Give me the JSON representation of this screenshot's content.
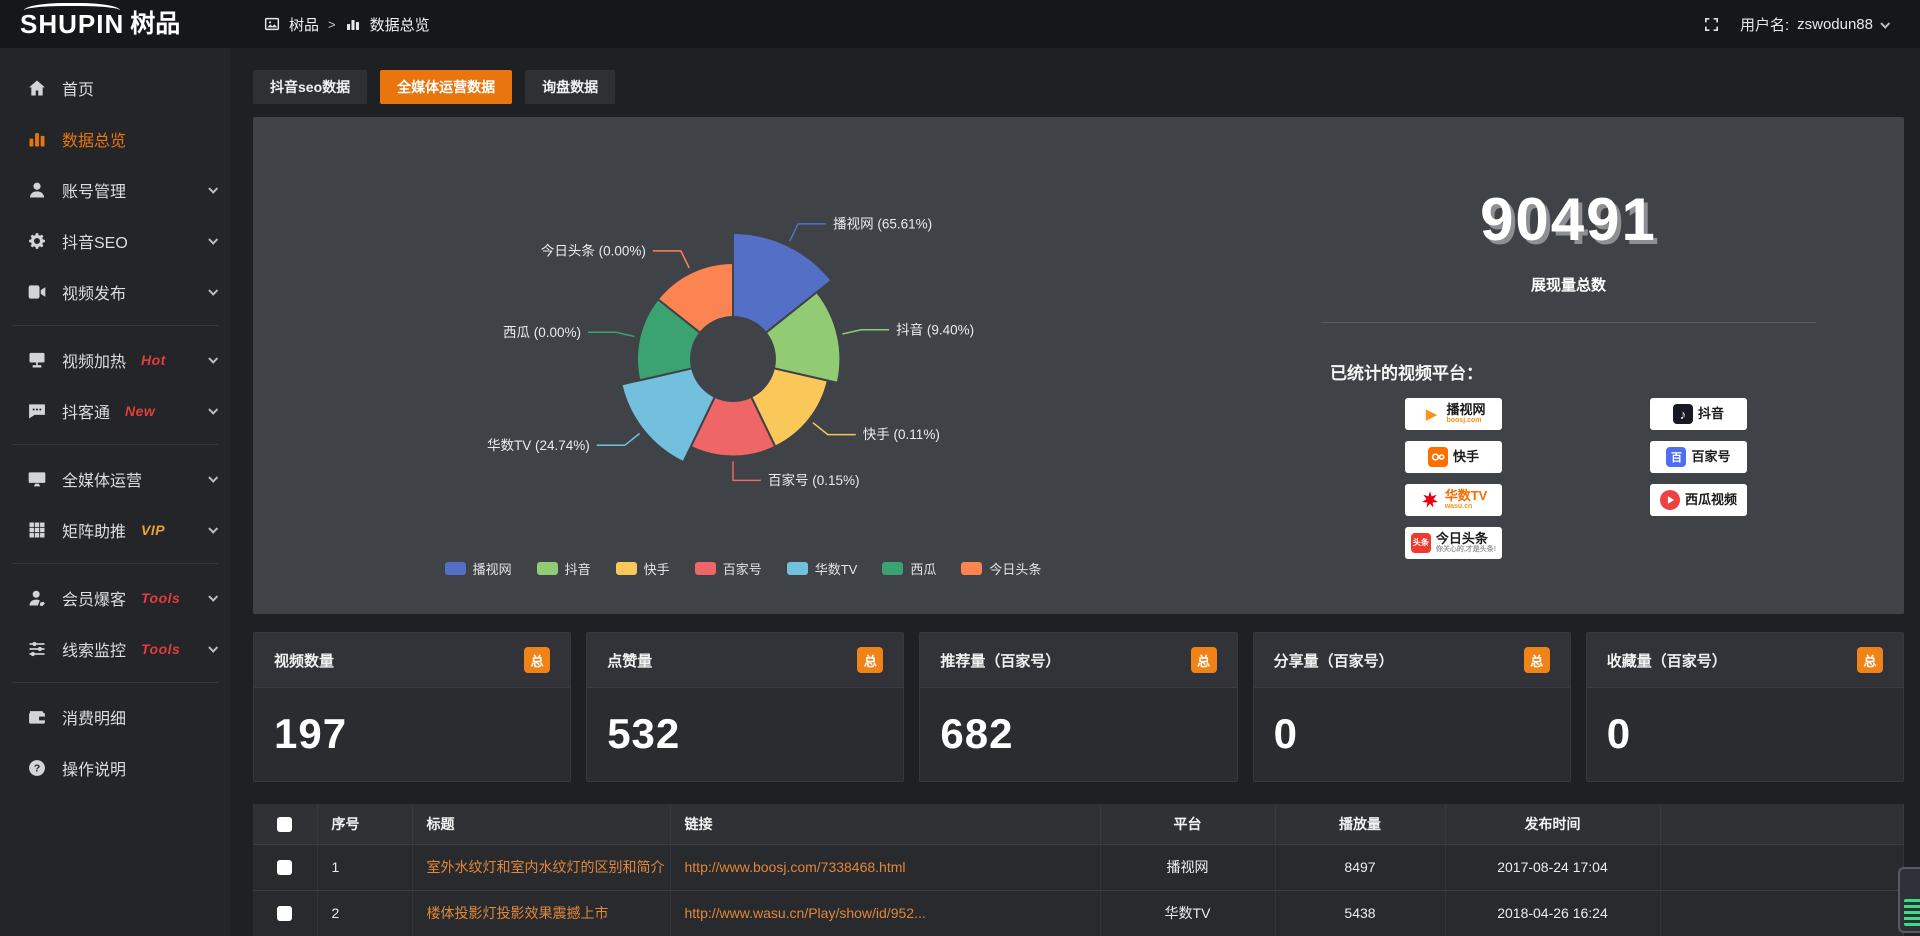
{
  "logo": {
    "en": "SHUPIN",
    "cn": "树品"
  },
  "topbar": {
    "breadcrumb": {
      "root": "树品",
      "separator": ">",
      "current": "数据总览"
    },
    "username_label": "用户名:",
    "username": "zswodun88"
  },
  "sidebar": {
    "items": [
      {
        "id": "home",
        "icon": "home-icon",
        "label": "首页"
      },
      {
        "id": "data",
        "icon": "chart-icon",
        "label": "数据总览",
        "active": true
      },
      {
        "id": "account",
        "icon": "user-icon",
        "label": "账号管理",
        "chevron": true
      },
      {
        "id": "douyin-seo",
        "icon": "gear-icon",
        "label": "抖音SEO",
        "chevron": true
      },
      {
        "id": "video-pub",
        "icon": "video-icon",
        "label": "视频发布",
        "chevron": true,
        "divider_after": true
      },
      {
        "id": "video-heat",
        "icon": "heat-icon",
        "label": "视频加热",
        "badge": "Hot",
        "badge_color": "#e23c3c",
        "chevron": true
      },
      {
        "id": "douketong",
        "icon": "chat-icon",
        "label": "抖客通",
        "badge": "New",
        "badge_color": "#e23c3c",
        "chevron": true,
        "divider_after": true
      },
      {
        "id": "media-ops",
        "icon": "monitor-icon",
        "label": "全媒体运营",
        "chevron": true
      },
      {
        "id": "matrix",
        "icon": "grid-icon",
        "label": "矩阵助推",
        "badge": "VIP",
        "badge_color": "#eea236",
        "chevron": true,
        "divider_after": true
      },
      {
        "id": "member",
        "icon": "member-icon",
        "label": "会员爆客",
        "badge": "Tools",
        "badge_color": "#e23c3c",
        "chevron": true
      },
      {
        "id": "clue",
        "icon": "sliders-icon",
        "label": "线索监控",
        "badge": "Tools",
        "badge_color": "#e23c3c",
        "chevron": true,
        "divider_after": true
      },
      {
        "id": "expense",
        "icon": "wallet-icon",
        "label": "消费明细"
      },
      {
        "id": "help",
        "icon": "help-icon",
        "label": "操作说明"
      }
    ]
  },
  "tabs": [
    {
      "id": "douyin-seo-data",
      "label": "抖音seo数据"
    },
    {
      "id": "media-ops-data",
      "label": "全媒体运营数据",
      "active": true
    },
    {
      "id": "inquiry-data",
      "label": "询盘数据"
    }
  ],
  "chart_data": {
    "type": "pie",
    "subtype": "nightingale-rose",
    "unit": "percent",
    "label_format": "{name} ({value}%)",
    "legend_position": "bottom",
    "slices": [
      {
        "name": "播视网",
        "value": 65.61,
        "color": "#5470c6"
      },
      {
        "name": "抖音",
        "value": 9.4,
        "color": "#91cc75"
      },
      {
        "name": "快手",
        "value": 0.11,
        "color": "#fac858"
      },
      {
        "name": "百家号",
        "value": 0.15,
        "color": "#ee6666"
      },
      {
        "name": "华数TV",
        "value": 24.74,
        "color": "#73c0de"
      },
      {
        "name": "西瓜",
        "value": 0.0,
        "color": "#3ba272"
      },
      {
        "name": "今日头条",
        "value": 0.0,
        "color": "#fc8452"
      }
    ]
  },
  "summary": {
    "total": "90491",
    "total_label": "展现量总数",
    "platforms_label": "已统计的视频平台：",
    "platform_columns": [
      [
        {
          "id": "boosj",
          "name": "播视网",
          "sub": "boosj.com"
        },
        {
          "id": "kuaishou",
          "name": "快手"
        },
        {
          "id": "wasu",
          "name": "华数TV",
          "sub": "wasu.cn"
        },
        {
          "id": "toutiao",
          "name": "今日头条",
          "sub": "你关心的,才是头条!",
          "sub_gray": true
        }
      ],
      [
        {
          "id": "douyin",
          "name": "抖音"
        },
        {
          "id": "baijia",
          "name": "百家号"
        },
        {
          "id": "xigua",
          "name": "西瓜视频"
        }
      ]
    ]
  },
  "stat_cards": [
    {
      "title": "视频数量",
      "badge": "总",
      "value": "197"
    },
    {
      "title": "点赞量",
      "badge": "总",
      "value": "532"
    },
    {
      "title": "推荐量（百家号）",
      "badge": "总",
      "value": "682"
    },
    {
      "title": "分享量（百家号）",
      "badge": "总",
      "value": "0"
    },
    {
      "title": "收藏量（百家号）",
      "badge": "总",
      "value": "0"
    }
  ],
  "table": {
    "headers": [
      "序号",
      "标题",
      "链接",
      "平台",
      "播放量",
      "发布时间"
    ],
    "rows": [
      {
        "num": "1",
        "title": "室外水纹灯和室内水纹灯的区别和简介",
        "link": "http://www.boosj.com/7338468.html",
        "platform": "播视网",
        "plays": "8497",
        "time": "2017-08-24 17:04"
      },
      {
        "num": "2",
        "title": "楼体投影灯投影效果震撼上市",
        "link": "http://www.wasu.cn/Play/show/id/952...",
        "platform": "华数TV",
        "plays": "5438",
        "time": "2018-04-26 16:24"
      }
    ]
  }
}
